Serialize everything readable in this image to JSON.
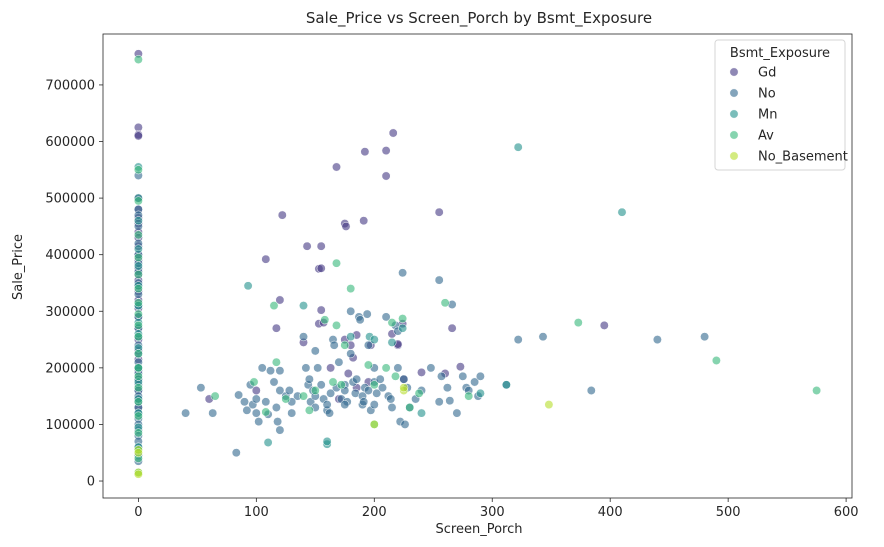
{
  "chart_data": {
    "type": "scatter",
    "title": "Sale_Price vs Screen_Porch by Bsmt_Exposure",
    "xlabel": "Screen_Porch",
    "ylabel": "Sale_Price",
    "xlim": [
      -30,
      605
    ],
    "ylim": [
      -30000,
      790000
    ],
    "xticks": [
      0,
      100,
      200,
      300,
      400,
      500,
      600
    ],
    "yticks": [
      0,
      100000,
      200000,
      300000,
      400000,
      500000,
      600000,
      700000
    ],
    "grid": false,
    "legend": {
      "title": "Bsmt_Exposure",
      "position": "top-right"
    },
    "series": [
      {
        "name": "Gd",
        "color": "#443983",
        "points": [
          [
            0,
            755000
          ],
          [
            0,
            625000
          ],
          [
            0,
            612000
          ],
          [
            0,
            610000
          ],
          [
            0,
            500000
          ],
          [
            0,
            480000
          ],
          [
            0,
            465000
          ],
          [
            0,
            455000
          ],
          [
            0,
            440000
          ],
          [
            0,
            430000
          ],
          [
            0,
            415000
          ],
          [
            0,
            400000
          ],
          [
            0,
            390000
          ],
          [
            0,
            375000
          ],
          [
            0,
            365000
          ],
          [
            0,
            355000
          ],
          [
            0,
            345000
          ],
          [
            0,
            335000
          ],
          [
            0,
            320000
          ],
          [
            0,
            305000
          ],
          [
            0,
            290000
          ],
          [
            0,
            270000
          ],
          [
            0,
            250000
          ],
          [
            0,
            230000
          ],
          [
            0,
            215000
          ],
          [
            0,
            195000
          ],
          [
            0,
            180000
          ],
          [
            0,
            160000
          ],
          [
            0,
            145000
          ],
          [
            0,
            130000
          ],
          [
            168,
            555000
          ],
          [
            192,
            582000
          ],
          [
            210,
            584000
          ],
          [
            216,
            615000
          ],
          [
            210,
            539000
          ],
          [
            255,
            475000
          ],
          [
            122,
            470000
          ],
          [
            175,
            455000
          ],
          [
            176,
            450000
          ],
          [
            191,
            460000
          ],
          [
            143,
            415000
          ],
          [
            155,
            415000
          ],
          [
            108,
            392000
          ],
          [
            153,
            375000
          ],
          [
            155,
            376000
          ],
          [
            120,
            320000
          ],
          [
            155,
            302000
          ],
          [
            153,
            278000
          ],
          [
            175,
            250000
          ],
          [
            180,
            240000
          ],
          [
            140,
            245000
          ],
          [
            215,
            260000
          ],
          [
            220,
            240000
          ],
          [
            117,
            270000
          ],
          [
            266,
            270000
          ],
          [
            395,
            275000
          ],
          [
            224,
            278000
          ],
          [
            157,
            280000
          ],
          [
            185,
            258000
          ],
          [
            220,
            242000
          ],
          [
            197,
            240000
          ],
          [
            182,
            218000
          ],
          [
            273,
            202000
          ],
          [
            240,
            192000
          ],
          [
            260,
            190000
          ],
          [
            195,
            175000
          ],
          [
            185,
            165000
          ],
          [
            100,
            160000
          ],
          [
            60,
            145000
          ],
          [
            170,
            145000
          ],
          [
            225,
            180000
          ],
          [
            178,
            190000
          ],
          [
            163,
            200000
          ]
        ]
      },
      {
        "name": "No",
        "color": "#31688e",
        "points": [
          [
            0,
            540000
          ],
          [
            0,
            480000
          ],
          [
            0,
            470000
          ],
          [
            0,
            450000
          ],
          [
            0,
            420000
          ],
          [
            0,
            400000
          ],
          [
            0,
            385000
          ],
          [
            0,
            370000
          ],
          [
            0,
            350000
          ],
          [
            0,
            330000
          ],
          [
            0,
            310000
          ],
          [
            0,
            290000
          ],
          [
            0,
            270000
          ],
          [
            0,
            255000
          ],
          [
            0,
            240000
          ],
          [
            0,
            225000
          ],
          [
            0,
            210000
          ],
          [
            0,
            200000
          ],
          [
            0,
            190000
          ],
          [
            0,
            180000
          ],
          [
            0,
            170000
          ],
          [
            0,
            160000
          ],
          [
            0,
            150000
          ],
          [
            0,
            140000
          ],
          [
            0,
            130000
          ],
          [
            0,
            120000
          ],
          [
            0,
            110000
          ],
          [
            0,
            100000
          ],
          [
            0,
            90000
          ],
          [
            0,
            80000
          ],
          [
            0,
            70000
          ],
          [
            0,
            60000
          ],
          [
            0,
            45000
          ],
          [
            0,
            35000
          ],
          [
            40,
            120000
          ],
          [
            53,
            165000
          ],
          [
            63,
            120000
          ],
          [
            83,
            50000
          ],
          [
            90,
            140000
          ],
          [
            92,
            125000
          ],
          [
            95,
            170000
          ],
          [
            97,
            135000
          ],
          [
            100,
            145000
          ],
          [
            100,
            120000
          ],
          [
            102,
            105000
          ],
          [
            105,
            200000
          ],
          [
            108,
            140000
          ],
          [
            110,
            118000
          ],
          [
            112,
            195000
          ],
          [
            115,
            175000
          ],
          [
            117,
            130000
          ],
          [
            118,
            105000
          ],
          [
            120,
            160000
          ],
          [
            120,
            90000
          ],
          [
            125,
            150000
          ],
          [
            128,
            160000
          ],
          [
            130,
            140000
          ],
          [
            135,
            150000
          ],
          [
            140,
            255000
          ],
          [
            142,
            200000
          ],
          [
            144,
            170000
          ],
          [
            145,
            180000
          ],
          [
            146,
            140000
          ],
          [
            148,
            160000
          ],
          [
            150,
            130000
          ],
          [
            152,
            200000
          ],
          [
            155,
            170000
          ],
          [
            157,
            145000
          ],
          [
            160,
            125000
          ],
          [
            160,
            135000
          ],
          [
            162,
            120000
          ],
          [
            163,
            155000
          ],
          [
            165,
            250000
          ],
          [
            166,
            240000
          ],
          [
            168,
            165000
          ],
          [
            170,
            210000
          ],
          [
            172,
            145000
          ],
          [
            175,
            170000
          ],
          [
            175,
            160000
          ],
          [
            177,
            140000
          ],
          [
            180,
            300000
          ],
          [
            180,
            225000
          ],
          [
            182,
            175000
          ],
          [
            184,
            155000
          ],
          [
            185,
            180000
          ],
          [
            187,
            290000
          ],
          [
            188,
            285000
          ],
          [
            190,
            150000
          ],
          [
            190,
            135000
          ],
          [
            191,
            140000
          ],
          [
            192,
            165000
          ],
          [
            194,
            295000
          ],
          [
            195,
            240000
          ],
          [
            195,
            160000
          ],
          [
            197,
            125000
          ],
          [
            200,
            175000
          ],
          [
            200,
            135000
          ],
          [
            202,
            155000
          ],
          [
            205,
            180000
          ],
          [
            207,
            165000
          ],
          [
            210,
            290000
          ],
          [
            212,
            150000
          ],
          [
            214,
            145000
          ],
          [
            215,
            130000
          ],
          [
            218,
            275000
          ],
          [
            220,
            265000
          ],
          [
            220,
            200000
          ],
          [
            222,
            105000
          ],
          [
            224,
            368000
          ],
          [
            225,
            180000
          ],
          [
            226,
            100000
          ],
          [
            228,
            165000
          ],
          [
            230,
            130000
          ],
          [
            235,
            145000
          ],
          [
            240,
            160000
          ],
          [
            248,
            200000
          ],
          [
            255,
            355000
          ],
          [
            255,
            140000
          ],
          [
            257,
            185000
          ],
          [
            262,
            165000
          ],
          [
            264,
            142000
          ],
          [
            266,
            312000
          ],
          [
            270,
            120000
          ],
          [
            275,
            185000
          ],
          [
            278,
            165000
          ],
          [
            280,
            160000
          ],
          [
            285,
            175000
          ],
          [
            288,
            150000
          ],
          [
            290,
            185000
          ],
          [
            312,
            170000
          ],
          [
            322,
            250000
          ],
          [
            343,
            255000
          ],
          [
            384,
            160000
          ],
          [
            440,
            250000
          ],
          [
            480,
            255000
          ],
          [
            150,
            150000
          ],
          [
            200,
            200000
          ],
          [
            130,
            120000
          ],
          [
            175,
            135000
          ],
          [
            150,
            230000
          ],
          [
            120,
            195000
          ],
          [
            85,
            152000
          ]
        ]
      },
      {
        "name": "Mn",
        "color": "#21918c",
        "points": [
          [
            0,
            555000
          ],
          [
            0,
            500000
          ],
          [
            0,
            460000
          ],
          [
            0,
            410000
          ],
          [
            0,
            380000
          ],
          [
            0,
            345000
          ],
          [
            0,
            310000
          ],
          [
            0,
            280000
          ],
          [
            0,
            260000
          ],
          [
            0,
            235000
          ],
          [
            0,
            200000
          ],
          [
            0,
            175000
          ],
          [
            0,
            145000
          ],
          [
            0,
            120000
          ],
          [
            0,
            95000
          ],
          [
            0,
            60000
          ],
          [
            93,
            345000
          ],
          [
            110,
            68000
          ],
          [
            140,
            310000
          ],
          [
            160,
            65000
          ],
          [
            160,
            70000
          ],
          [
            180,
            255000
          ],
          [
            196,
            255000
          ],
          [
            215,
            245000
          ],
          [
            224,
            270000
          ],
          [
            312,
            170000
          ],
          [
            322,
            590000
          ],
          [
            410,
            475000
          ],
          [
            290,
            155000
          ],
          [
            240,
            120000
          ],
          [
            200,
            250000
          ]
        ]
      },
      {
        "name": "Av",
        "color": "#35b779",
        "points": [
          [
            0,
            745000
          ],
          [
            0,
            550000
          ],
          [
            0,
            495000
          ],
          [
            0,
            435000
          ],
          [
            0,
            395000
          ],
          [
            0,
            365000
          ],
          [
            0,
            340000
          ],
          [
            0,
            315000
          ],
          [
            0,
            295000
          ],
          [
            0,
            275000
          ],
          [
            0,
            255000
          ],
          [
            0,
            225000
          ],
          [
            0,
            200000
          ],
          [
            0,
            185000
          ],
          [
            0,
            165000
          ],
          [
            0,
            140000
          ],
          [
            0,
            115000
          ],
          [
            0,
            85000
          ],
          [
            0,
            55000
          ],
          [
            0,
            40000
          ],
          [
            0,
            15000
          ],
          [
            65,
            150000
          ],
          [
            98,
            175000
          ],
          [
            108,
            122000
          ],
          [
            115,
            310000
          ],
          [
            117,
            210000
          ],
          [
            140,
            150000
          ],
          [
            150,
            160000
          ],
          [
            158,
            285000
          ],
          [
            165,
            175000
          ],
          [
            168,
            385000
          ],
          [
            168,
            275000
          ],
          [
            172,
            170000
          ],
          [
            175,
            240000
          ],
          [
            180,
            340000
          ],
          [
            195,
            205000
          ],
          [
            200,
            170000
          ],
          [
            210,
            200000
          ],
          [
            215,
            280000
          ],
          [
            218,
            185000
          ],
          [
            224,
            287000
          ],
          [
            230,
            130000
          ],
          [
            238,
            155000
          ],
          [
            260,
            315000
          ],
          [
            280,
            150000
          ],
          [
            373,
            280000
          ],
          [
            490,
            213000
          ],
          [
            575,
            160000
          ],
          [
            125,
            145000
          ],
          [
            145,
            125000
          ],
          [
            200,
            100000
          ]
        ]
      },
      {
        "name": "No_Basement",
        "color": "#b5de2b",
        "points": [
          [
            0,
            55000
          ],
          [
            0,
            50000
          ],
          [
            0,
            15000
          ],
          [
            0,
            12000
          ],
          [
            200,
            100000
          ],
          [
            225,
            160000
          ],
          [
            348,
            135000
          ],
          [
            225,
            165000
          ]
        ]
      }
    ]
  }
}
